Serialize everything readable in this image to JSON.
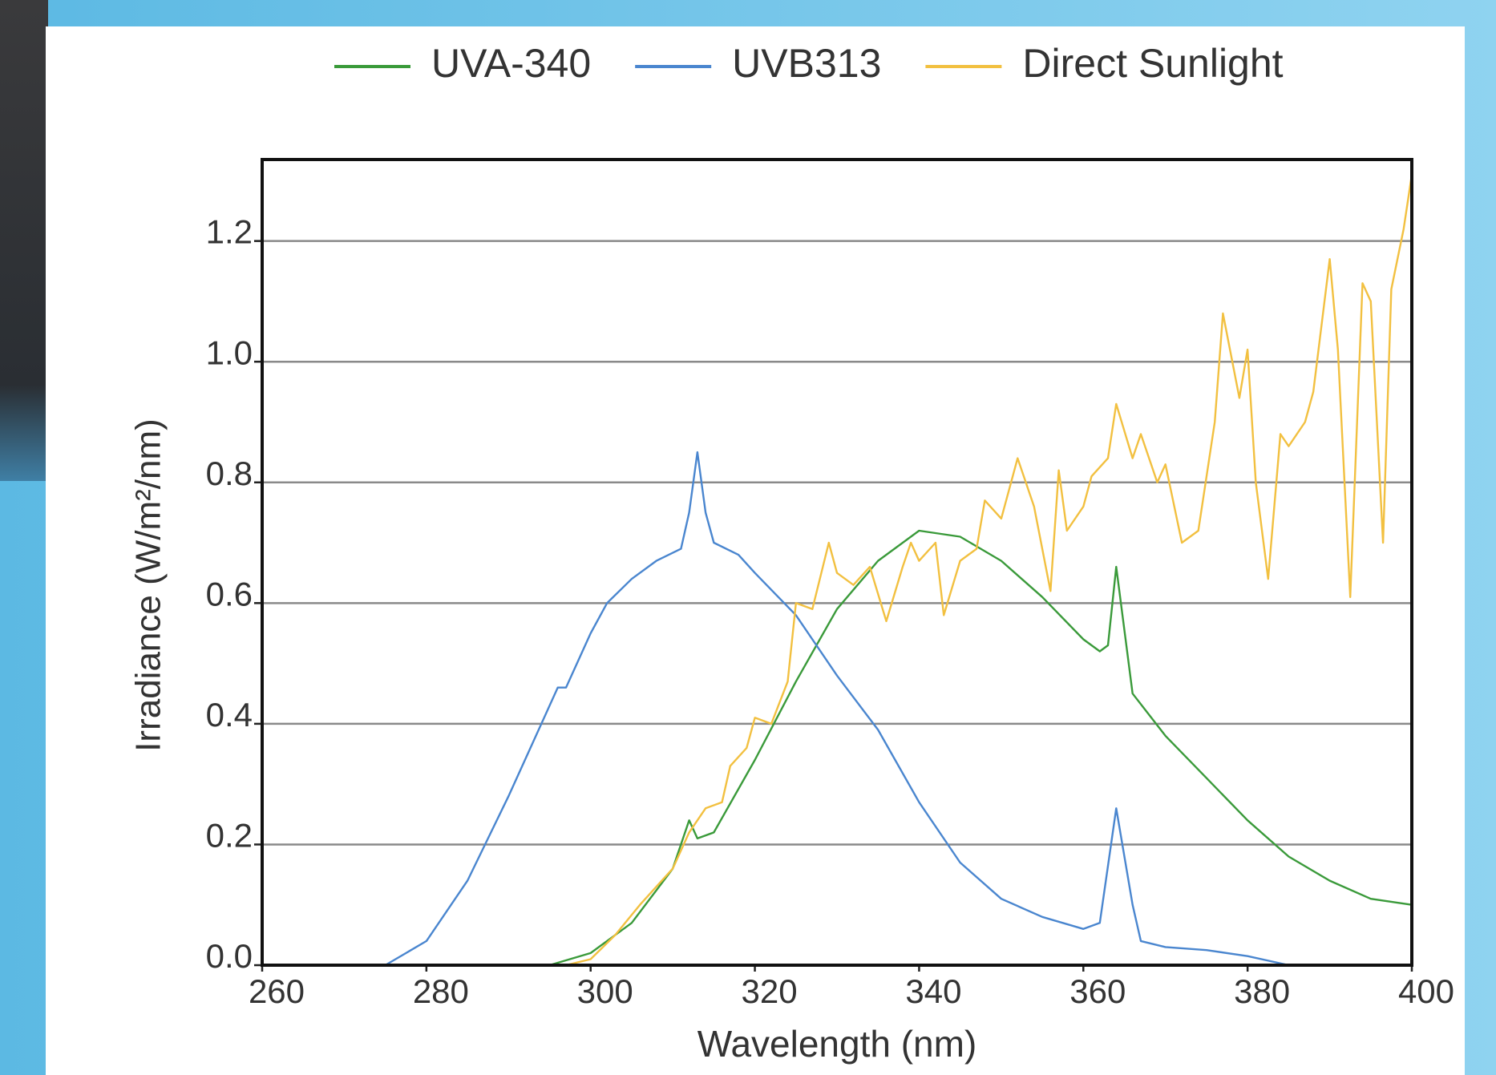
{
  "chart_data": {
    "type": "line",
    "x_label": "Wavelength (nm)",
    "y_label": "Irradiance (W/m²/nm)",
    "xlim": [
      260,
      400
    ],
    "xticks": [
      260,
      280,
      300,
      320,
      340,
      360,
      380,
      400
    ],
    "ylim": [
      0,
      1.335
    ],
    "yticks": [
      {
        "value": 0,
        "label": "0.0"
      },
      0.2,
      0.4,
      0.6,
      0.8,
      {
        "value": 1,
        "label": "1.0"
      },
      1.2
    ],
    "grid": true,
    "legend": "top",
    "series": [
      {
        "name": "UVA-340",
        "color": "#3a9a3a",
        "x": [
          295,
          300,
          305,
          310,
          312,
          313,
          315,
          320,
          325,
          330,
          335,
          340,
          345,
          350,
          355,
          360,
          362,
          363,
          364,
          366,
          370,
          375,
          380,
          385,
          390,
          395,
          400
        ],
        "values": [
          0,
          0.02,
          0.07,
          0.16,
          0.24,
          0.21,
          0.22,
          0.34,
          0.47,
          0.59,
          0.67,
          0.72,
          0.71,
          0.67,
          0.61,
          0.54,
          0.52,
          0.53,
          0.66,
          0.45,
          0.38,
          0.31,
          0.24,
          0.18,
          0.14,
          0.11,
          0.1
        ]
      },
      {
        "name": "UVB313",
        "color": "#4a86cf",
        "x": [
          275,
          280,
          285,
          290,
          295,
          296,
          297,
          300,
          302,
          305,
          308,
          311,
          312,
          313,
          314,
          315,
          318,
          320,
          325,
          330,
          335,
          340,
          345,
          350,
          355,
          360,
          362,
          364,
          366,
          367,
          370,
          375,
          380,
          385
        ],
        "values": [
          0,
          0.04,
          0.14,
          0.28,
          0.43,
          0.46,
          0.46,
          0.55,
          0.6,
          0.64,
          0.67,
          0.69,
          0.75,
          0.85,
          0.75,
          0.7,
          0.68,
          0.65,
          0.58,
          0.48,
          0.39,
          0.27,
          0.17,
          0.11,
          0.08,
          0.06,
          0.07,
          0.26,
          0.1,
          0.04,
          0.03,
          0.025,
          0.015,
          0
        ]
      },
      {
        "name": "Direct Sunlight",
        "color": "#f2c040",
        "x": [
          297,
          300,
          303,
          306,
          308,
          310,
          312,
          314,
          316,
          317,
          319,
          320,
          322,
          324,
          325,
          327,
          329,
          330,
          332,
          334,
          336,
          338,
          339,
          340,
          342,
          343,
          345,
          347,
          348,
          350,
          352,
          354,
          356,
          357,
          358,
          360,
          361,
          363,
          364,
          366,
          367,
          369,
          370,
          372,
          374,
          376,
          377,
          379,
          380,
          381,
          382.5,
          384,
          385,
          387,
          388,
          390,
          391,
          392.5,
          394,
          395,
          396.5,
          397.5,
          399,
          400
        ],
        "values": [
          0,
          0.01,
          0.05,
          0.1,
          0.13,
          0.16,
          0.22,
          0.26,
          0.27,
          0.33,
          0.36,
          0.41,
          0.4,
          0.47,
          0.6,
          0.59,
          0.7,
          0.65,
          0.63,
          0.66,
          0.57,
          0.66,
          0.7,
          0.67,
          0.7,
          0.58,
          0.67,
          0.69,
          0.77,
          0.74,
          0.84,
          0.76,
          0.62,
          0.82,
          0.72,
          0.76,
          0.81,
          0.84,
          0.93,
          0.84,
          0.88,
          0.8,
          0.83,
          0.7,
          0.72,
          0.9,
          1.08,
          0.94,
          1.02,
          0.8,
          0.64,
          0.88,
          0.86,
          0.9,
          0.95,
          1.17,
          1.02,
          0.61,
          1.13,
          1.1,
          0.7,
          1.12,
          1.22,
          1.31
        ]
      }
    ]
  }
}
